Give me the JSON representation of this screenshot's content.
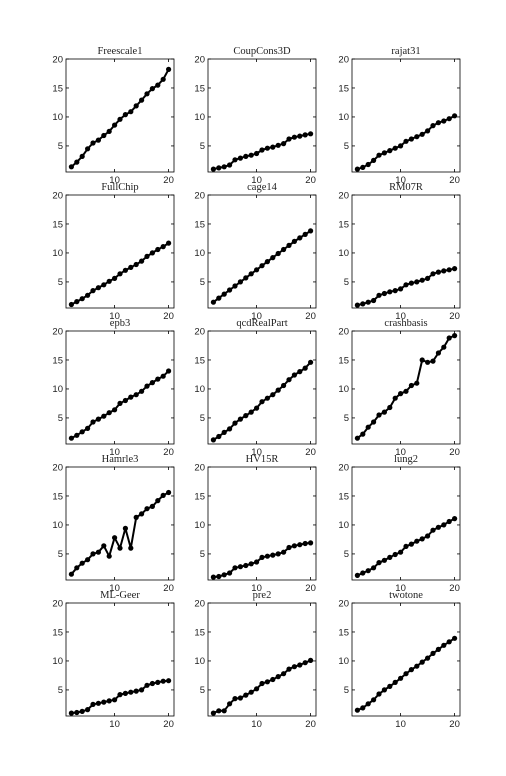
{
  "chart_data": [
    {
      "type": "line",
      "title": "Freescale1",
      "xlim": [
        1,
        21
      ],
      "ylim": [
        0.5,
        20
      ],
      "xticks": [
        10,
        20
      ],
      "yticks": [
        5,
        10,
        15,
        20
      ],
      "x": [
        2,
        3,
        4,
        5,
        6,
        7,
        8,
        9,
        10,
        11,
        12,
        13,
        14,
        15,
        16,
        17,
        18,
        19,
        20
      ],
      "y": [
        1.4,
        2.2,
        3.2,
        4.5,
        5.5,
        6.0,
        6.8,
        7.5,
        8.6,
        9.6,
        10.4,
        10.9,
        11.9,
        12.9,
        14.0,
        14.9,
        15.5,
        16.5,
        18.2
      ]
    },
    {
      "type": "line",
      "title": "CoupCons3D",
      "xlim": [
        1,
        21
      ],
      "ylim": [
        0.5,
        20
      ],
      "xticks": [
        10,
        20
      ],
      "yticks": [
        5,
        10,
        15,
        20
      ],
      "x": [
        2,
        3,
        4,
        5,
        6,
        7,
        8,
        9,
        10,
        11,
        12,
        13,
        14,
        15,
        16,
        17,
        18,
        19,
        20
      ],
      "y": [
        1.0,
        1.2,
        1.4,
        1.7,
        2.6,
        2.9,
        3.2,
        3.4,
        3.7,
        4.3,
        4.6,
        4.8,
        5.1,
        5.4,
        6.2,
        6.5,
        6.7,
        6.9,
        7.1
      ]
    },
    {
      "type": "line",
      "title": "rajat31",
      "xlim": [
        1,
        21
      ],
      "ylim": [
        0.5,
        20
      ],
      "xticks": [
        10,
        20
      ],
      "yticks": [
        5,
        10,
        15,
        20
      ],
      "x": [
        2,
        3,
        4,
        5,
        6,
        7,
        8,
        9,
        10,
        11,
        12,
        13,
        14,
        15,
        16,
        17,
        18,
        19,
        20
      ],
      "y": [
        1.0,
        1.3,
        1.8,
        2.5,
        3.4,
        3.8,
        4.2,
        4.6,
        5.0,
        5.8,
        6.2,
        6.6,
        7.0,
        7.6,
        8.5,
        9.0,
        9.3,
        9.7,
        10.2
      ]
    },
    {
      "type": "line",
      "title": "FullChip",
      "xlim": [
        1,
        21
      ],
      "ylim": [
        0.5,
        20
      ],
      "xticks": [
        10,
        20
      ],
      "yticks": [
        5,
        10,
        15,
        20
      ],
      "x": [
        2,
        3,
        4,
        5,
        6,
        7,
        8,
        9,
        10,
        11,
        12,
        13,
        14,
        15,
        16,
        17,
        18,
        19,
        20
      ],
      "y": [
        1.1,
        1.6,
        2.1,
        2.7,
        3.5,
        4.0,
        4.5,
        5.1,
        5.6,
        6.4,
        7.0,
        7.5,
        8.0,
        8.6,
        9.4,
        10.0,
        10.6,
        11.1,
        11.7
      ]
    },
    {
      "type": "line",
      "title": "cage14",
      "xlim": [
        1,
        21
      ],
      "ylim": [
        0.5,
        20
      ],
      "xticks": [
        10,
        20
      ],
      "yticks": [
        5,
        10,
        15,
        20
      ],
      "x": [
        2,
        3,
        4,
        5,
        6,
        7,
        8,
        9,
        10,
        11,
        12,
        13,
        14,
        15,
        16,
        17,
        18,
        19,
        20
      ],
      "y": [
        1.5,
        2.2,
        2.9,
        3.6,
        4.3,
        5.0,
        5.7,
        6.4,
        7.1,
        7.8,
        8.5,
        9.2,
        9.9,
        10.6,
        11.3,
        12.0,
        12.6,
        13.2,
        13.8
      ]
    },
    {
      "type": "line",
      "title": "RM07R",
      "xlim": [
        1,
        21
      ],
      "ylim": [
        0.5,
        20
      ],
      "xticks": [
        10,
        20
      ],
      "yticks": [
        5,
        10,
        15,
        20
      ],
      "x": [
        2,
        3,
        4,
        5,
        6,
        7,
        8,
        9,
        10,
        11,
        12,
        13,
        14,
        15,
        16,
        17,
        18,
        19,
        20
      ],
      "y": [
        1.0,
        1.2,
        1.5,
        1.8,
        2.7,
        3.0,
        3.3,
        3.5,
        3.8,
        4.5,
        4.8,
        5.0,
        5.3,
        5.6,
        6.4,
        6.7,
        6.9,
        7.1,
        7.3
      ]
    },
    {
      "type": "line",
      "title": "epb3",
      "xlim": [
        1,
        21
      ],
      "ylim": [
        0.5,
        20
      ],
      "xticks": [
        10,
        20
      ],
      "yticks": [
        5,
        10,
        15,
        20
      ],
      "x": [
        2,
        3,
        4,
        5,
        6,
        7,
        8,
        9,
        10,
        11,
        12,
        13,
        14,
        15,
        16,
        17,
        18,
        19,
        20
      ],
      "y": [
        1.5,
        2.0,
        2.6,
        3.2,
        4.3,
        4.8,
        5.3,
        5.9,
        6.4,
        7.5,
        8.0,
        8.6,
        9.0,
        9.6,
        10.5,
        11.1,
        11.7,
        12.2,
        13.1
      ]
    },
    {
      "type": "line",
      "title": "qcdRealPart",
      "xlim": [
        1,
        21
      ],
      "ylim": [
        0.5,
        20
      ],
      "xticks": [
        10,
        20
      ],
      "yticks": [
        5,
        10,
        15,
        20
      ],
      "x": [
        2,
        3,
        4,
        5,
        6,
        7,
        8,
        9,
        10,
        11,
        12,
        13,
        14,
        15,
        16,
        17,
        18,
        19,
        20
      ],
      "y": [
        1.2,
        1.8,
        2.5,
        3.1,
        4.1,
        4.8,
        5.4,
        6.0,
        6.7,
        7.8,
        8.4,
        9.0,
        9.8,
        10.6,
        11.6,
        12.4,
        13.0,
        13.6,
        14.6
      ]
    },
    {
      "type": "line",
      "title": "crashbasis",
      "xlim": [
        1,
        21
      ],
      "ylim": [
        0.5,
        20
      ],
      "xticks": [
        10,
        20
      ],
      "yticks": [
        5,
        10,
        15,
        20
      ],
      "x": [
        2,
        3,
        4,
        5,
        6,
        7,
        8,
        9,
        10,
        11,
        12,
        13,
        14,
        15,
        16,
        17,
        18,
        19,
        20
      ],
      "y": [
        1.5,
        2.2,
        3.4,
        4.3,
        5.5,
        6.0,
        6.8,
        8.4,
        9.2,
        9.6,
        10.6,
        11.0,
        15.0,
        14.6,
        14.8,
        16.2,
        17.2,
        18.8,
        19.2
      ]
    },
    {
      "type": "line",
      "title": "Hamrle3",
      "xlim": [
        1,
        21
      ],
      "ylim": [
        0.5,
        20
      ],
      "xticks": [
        10,
        20
      ],
      "yticks": [
        5,
        10,
        15,
        20
      ],
      "x": [
        2,
        3,
        4,
        5,
        6,
        7,
        8,
        9,
        10,
        11,
        12,
        13,
        14,
        15,
        16,
        17,
        18,
        19,
        20
      ],
      "y": [
        1.5,
        2.6,
        3.4,
        4.0,
        5.0,
        5.3,
        6.4,
        4.6,
        7.8,
        6.0,
        9.4,
        6.0,
        11.3,
        11.9,
        12.8,
        13.2,
        14.2,
        15.1,
        15.6
      ]
    },
    {
      "type": "line",
      "title": "HV15R",
      "xlim": [
        1,
        21
      ],
      "ylim": [
        0.5,
        20
      ],
      "xticks": [
        10,
        20
      ],
      "yticks": [
        5,
        10,
        15,
        20
      ],
      "x": [
        2,
        3,
        4,
        5,
        6,
        7,
        8,
        9,
        10,
        11,
        12,
        13,
        14,
        15,
        16,
        17,
        18,
        19,
        20
      ],
      "y": [
        1.0,
        1.1,
        1.4,
        1.7,
        2.6,
        2.8,
        3.0,
        3.3,
        3.6,
        4.4,
        4.6,
        4.8,
        5.0,
        5.3,
        6.1,
        6.4,
        6.6,
        6.8,
        6.9
      ]
    },
    {
      "type": "line",
      "title": "lung2",
      "xlim": [
        1,
        21
      ],
      "ylim": [
        0.5,
        20
      ],
      "xticks": [
        10,
        20
      ],
      "yticks": [
        5,
        10,
        15,
        20
      ],
      "x": [
        2,
        3,
        4,
        5,
        6,
        7,
        8,
        9,
        10,
        11,
        12,
        13,
        14,
        15,
        16,
        17,
        18,
        19,
        20
      ],
      "y": [
        1.3,
        1.7,
        2.1,
        2.6,
        3.5,
        3.9,
        4.4,
        4.9,
        5.3,
        6.3,
        6.7,
        7.2,
        7.6,
        8.1,
        9.1,
        9.6,
        10.0,
        10.6,
        11.1
      ]
    },
    {
      "type": "line",
      "title": "ML-Geer",
      "xlim": [
        1,
        21
      ],
      "ylim": [
        0.5,
        20
      ],
      "xticks": [
        10,
        20
      ],
      "yticks": [
        5,
        10,
        15,
        20
      ],
      "x": [
        2,
        3,
        4,
        5,
        6,
        7,
        8,
        9,
        10,
        11,
        12,
        13,
        14,
        15,
        16,
        17,
        18,
        19,
        20
      ],
      "y": [
        1.0,
        1.1,
        1.3,
        1.6,
        2.5,
        2.7,
        2.9,
        3.1,
        3.3,
        4.2,
        4.4,
        4.6,
        4.8,
        5.0,
        5.8,
        6.1,
        6.3,
        6.5,
        6.6
      ]
    },
    {
      "type": "line",
      "title": "pre2",
      "xlim": [
        1,
        21
      ],
      "ylim": [
        0.5,
        20
      ],
      "xticks": [
        10,
        20
      ],
      "yticks": [
        5,
        10,
        15,
        20
      ],
      "x": [
        2,
        3,
        4,
        5,
        6,
        7,
        8,
        9,
        10,
        11,
        12,
        13,
        14,
        15,
        16,
        17,
        18,
        19,
        20
      ],
      "y": [
        1.0,
        1.4,
        1.4,
        2.6,
        3.5,
        3.6,
        4.1,
        4.6,
        5.2,
        6.1,
        6.4,
        6.8,
        7.3,
        7.8,
        8.6,
        9.0,
        9.3,
        9.7,
        10.1
      ]
    },
    {
      "type": "line",
      "title": "twotone",
      "xlim": [
        1,
        21
      ],
      "ylim": [
        0.5,
        20
      ],
      "xticks": [
        10,
        20
      ],
      "yticks": [
        5,
        10,
        15,
        20
      ],
      "x": [
        2,
        3,
        4,
        5,
        6,
        7,
        8,
        9,
        10,
        11,
        12,
        13,
        14,
        15,
        16,
        17,
        18,
        19,
        20
      ],
      "y": [
        1.5,
        1.9,
        2.6,
        3.3,
        4.3,
        5.0,
        5.6,
        6.3,
        7.0,
        7.8,
        8.5,
        9.1,
        9.8,
        10.5,
        11.3,
        12.0,
        12.7,
        13.3,
        13.9
      ]
    }
  ]
}
